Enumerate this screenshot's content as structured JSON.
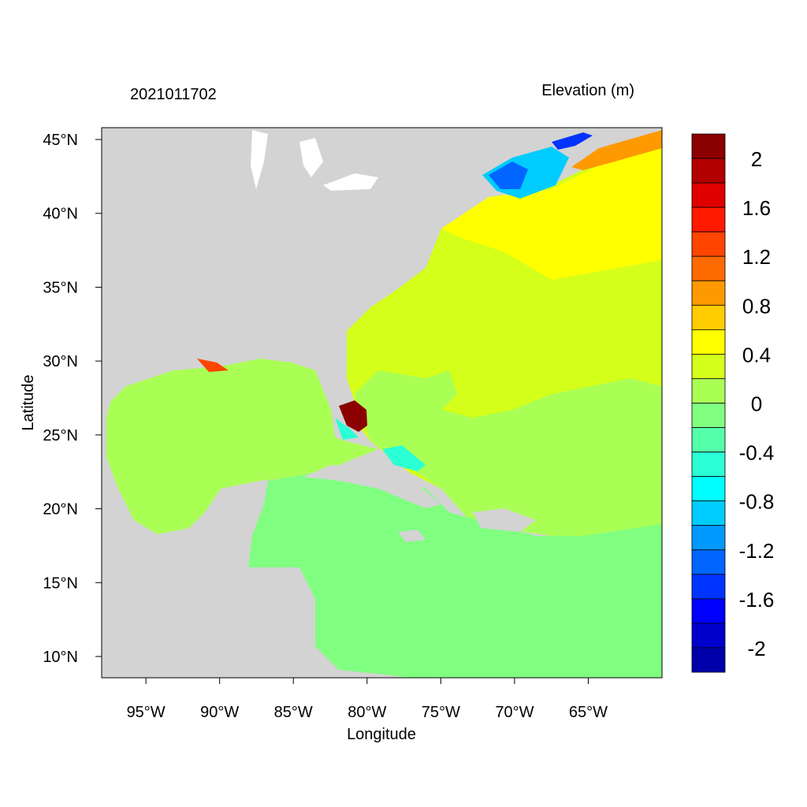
{
  "map": {
    "title_left": "2021011702",
    "title_right": "Elevation (m)",
    "xlabel": "Longitude",
    "ylabel": "Latitude",
    "xlim": [
      -98,
      -60
    ],
    "ylim": [
      8.56,
      45.8
    ],
    "xticks": [
      {
        "value": -95,
        "label": "95°W"
      },
      {
        "value": -90,
        "label": "90°W"
      },
      {
        "value": -85,
        "label": "85°W"
      },
      {
        "value": -80,
        "label": "80°W"
      },
      {
        "value": -75,
        "label": "75°W"
      },
      {
        "value": -70,
        "label": "70°W"
      },
      {
        "value": -65,
        "label": "65°W"
      }
    ],
    "yticks": [
      {
        "value": 10,
        "label": "10°N"
      },
      {
        "value": 15,
        "label": "15°N"
      },
      {
        "value": 20,
        "label": "20°N"
      },
      {
        "value": 25,
        "label": "25°N"
      },
      {
        "value": 30,
        "label": "30°N"
      },
      {
        "value": 35,
        "label": "35°N"
      },
      {
        "value": 40,
        "label": "40°N"
      },
      {
        "value": 45,
        "label": "45°N"
      }
    ],
    "colorbar": {
      "range": [
        -2.2,
        2.2
      ],
      "colors": [
        "#8b0000",
        "#b30000",
        "#e00000",
        "#ff1a00",
        "#ff4500",
        "#ff6a00",
        "#ff9900",
        "#ffcc00",
        "#ffff00",
        "#d4ff1a",
        "#aaff55",
        "#80ff80",
        "#55ffaa",
        "#2affd5",
        "#00ffff",
        "#00ccff",
        "#0099ff",
        "#0066ff",
        "#0033ff",
        "#0000ff",
        "#0000cc",
        "#0000aa"
      ],
      "ticks": [
        2,
        1.6,
        1.2,
        0.8,
        0.4,
        0,
        -0.4,
        -0.8,
        -1.2,
        -1.6,
        -2
      ]
    }
  }
}
